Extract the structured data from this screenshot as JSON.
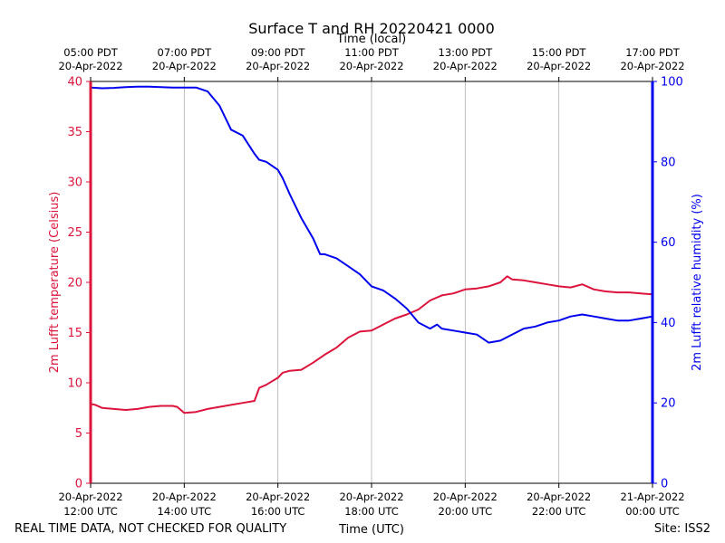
{
  "chart_data": {
    "type": "line",
    "title": "Surface T and RH 20220421 0000",
    "top_axis_title": "Time (local)",
    "xlabel": "Time (UTC)",
    "ylabel_left": "2m Lufft temperature (Celsius)",
    "ylabel_right": "2m Lufft relative humidity (%)",
    "footer_left": "REAL TIME DATA, NOT CHECKED FOR QUALITY",
    "footer_right": "Site: ISS2",
    "xlim_hours_utc": [
      12,
      24
    ],
    "ylim_left": [
      0,
      40
    ],
    "ylim_right": [
      0,
      100
    ],
    "yticks_left": [
      "0",
      "5",
      "10",
      "15",
      "20",
      "25",
      "30",
      "35",
      "40"
    ],
    "yticks_right": [
      "0",
      "20",
      "40",
      "60",
      "80",
      "100"
    ],
    "grid": "vertical",
    "bottom_ticks": [
      {
        "date": "20-Apr-2022",
        "time": "12:00 UTC"
      },
      {
        "date": "20-Apr-2022",
        "time": "14:00 UTC"
      },
      {
        "date": "20-Apr-2022",
        "time": "16:00 UTC"
      },
      {
        "date": "20-Apr-2022",
        "time": "18:00 UTC"
      },
      {
        "date": "20-Apr-2022",
        "time": "20:00 UTC"
      },
      {
        "date": "20-Apr-2022",
        "time": "22:00 UTC"
      },
      {
        "date": "21-Apr-2022",
        "time": "00:00 UTC"
      }
    ],
    "top_ticks": [
      {
        "time": "05:00 PDT",
        "date": "20-Apr-2022"
      },
      {
        "time": "07:00 PDT",
        "date": "20-Apr-2022"
      },
      {
        "time": "09:00 PDT",
        "date": "20-Apr-2022"
      },
      {
        "time": "11:00 PDT",
        "date": "20-Apr-2022"
      },
      {
        "time": "13:00 PDT",
        "date": "20-Apr-2022"
      },
      {
        "time": "15:00 PDT",
        "date": "20-Apr-2022"
      },
      {
        "time": "17:00 PDT",
        "date": "20-Apr-2022"
      }
    ],
    "series": [
      {
        "axis": "left",
        "color": "#dc143c",
        "x": [
          12.0,
          12.1,
          12.25,
          12.5,
          12.75,
          13.0,
          13.25,
          13.5,
          13.75,
          13.85,
          14.0,
          14.25,
          14.5,
          14.75,
          15.0,
          15.25,
          15.5,
          15.6,
          15.75,
          16.0,
          16.1,
          16.25,
          16.5,
          16.75,
          17.0,
          17.25,
          17.5,
          17.75,
          18.0,
          18.25,
          18.5,
          18.75,
          19.0,
          19.25,
          19.5,
          19.75,
          20.0,
          20.25,
          20.5,
          20.75,
          20.9,
          21.0,
          21.25,
          21.5,
          21.75,
          22.0,
          22.25,
          22.5,
          22.75,
          23.0,
          23.25,
          23.5,
          23.75,
          24.0
        ],
        "y": [
          7.9,
          7.8,
          7.5,
          7.4,
          7.3,
          7.4,
          7.6,
          7.7,
          7.7,
          7.6,
          7.0,
          7.1,
          7.4,
          7.6,
          7.8,
          8.0,
          8.2,
          9.5,
          9.8,
          10.5,
          11.0,
          11.2,
          11.3,
          12.0,
          12.8,
          13.5,
          14.5,
          15.1,
          15.2,
          15.8,
          16.4,
          16.8,
          17.3,
          18.2,
          18.7,
          18.9,
          19.3,
          19.4,
          19.6,
          20.0,
          20.6,
          20.3,
          20.2,
          20.0,
          19.8,
          19.6,
          19.5,
          19.8,
          19.3,
          19.1,
          19.0,
          19.0,
          18.9,
          18.8
        ]
      },
      {
        "axis": "right",
        "color": "#0000ee",
        "x": [
          12.0,
          12.25,
          12.5,
          12.75,
          13.0,
          13.25,
          13.5,
          13.75,
          14.0,
          14.25,
          14.5,
          14.75,
          15.0,
          15.25,
          15.5,
          15.6,
          15.75,
          16.0,
          16.1,
          16.25,
          16.5,
          16.75,
          16.9,
          17.0,
          17.25,
          17.5,
          17.75,
          18.0,
          18.25,
          18.5,
          18.75,
          19.0,
          19.25,
          19.4,
          19.5,
          19.75,
          20.0,
          20.25,
          20.5,
          20.75,
          21.0,
          21.25,
          21.5,
          21.75,
          22.0,
          22.25,
          22.5,
          22.75,
          23.0,
          23.25,
          23.5,
          23.75,
          24.0
        ],
        "y": [
          98.5,
          98.3,
          98.4,
          98.6,
          98.7,
          98.7,
          98.6,
          98.5,
          98.5,
          98.5,
          97.5,
          94.0,
          88.0,
          86.5,
          82.0,
          80.5,
          80.0,
          78.0,
          76.0,
          72.0,
          66.0,
          61.0,
          57.0,
          57.0,
          56.0,
          54.0,
          52.0,
          49.0,
          48.0,
          46.0,
          43.5,
          40.0,
          38.5,
          39.5,
          38.5,
          38.0,
          37.5,
          37.0,
          35.0,
          35.5,
          37.0,
          38.5,
          39.0,
          40.0,
          40.5,
          41.5,
          42.0,
          41.5,
          41.0,
          40.5,
          40.5,
          41.0,
          41.5
        ]
      }
    ]
  }
}
